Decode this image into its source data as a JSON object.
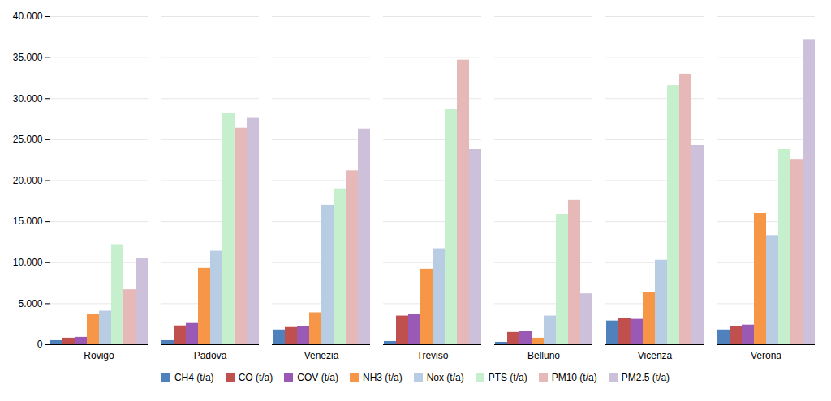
{
  "chart_data": {
    "type": "bar",
    "categories": [
      "Rovigo",
      "Padova",
      "Venezia",
      "Treviso",
      "Belluno",
      "Vicenza",
      "Verona"
    ],
    "series": [
      {
        "name": "CH4 (t/a)",
        "color": "#4F81BD",
        "values": [
          500,
          500,
          1800,
          400,
          300,
          2900,
          1800
        ]
      },
      {
        "name": "CO (t/a)",
        "color": "#C0504D",
        "values": [
          800,
          2300,
          2100,
          3500,
          1500,
          3200,
          2200
        ]
      },
      {
        "name": "COV (t/a)",
        "color": "#9B59B6",
        "values": [
          900,
          2600,
          2200,
          3700,
          1600,
          3100,
          2400
        ]
      },
      {
        "name": "NH3 (t/a)",
        "color": "#F79646",
        "values": [
          3700,
          9300,
          3900,
          9200,
          800,
          6400,
          16000
        ]
      },
      {
        "name": "Nox (t/a)",
        "color": "#B8CCE4",
        "values": [
          4100,
          11400,
          17000,
          11700,
          3500,
          10300,
          13300
        ]
      },
      {
        "name": "PTS (t/a)",
        "color": "#C6EFCE",
        "values": [
          12200,
          28200,
          19000,
          28700,
          15900,
          31600,
          23800
        ]
      },
      {
        "name": "PM10 (t/a)",
        "color": "#E6B9B8",
        "values": [
          6700,
          26400,
          21200,
          34700,
          17600,
          33000,
          22600
        ]
      },
      {
        "name": "PM2.5 (t/a)",
        "color": "#CCC0DA",
        "values": [
          10500,
          27600,
          26300,
          23800,
          6200,
          24300,
          37200
        ]
      }
    ],
    "ylim": [
      0,
      40000
    ],
    "yticks": [
      0,
      {
        "value": 5000,
        "label": "5.000"
      },
      {
        "value": 10000,
        "label": "10.000"
      },
      {
        "value": 15000,
        "label": "15.000"
      },
      {
        "value": 20000,
        "label": "20.000"
      },
      {
        "value": 25000,
        "label": "25.000"
      },
      {
        "value": 30000,
        "label": "30.000"
      },
      {
        "value": 35000,
        "label": "35.000"
      },
      {
        "value": 40000,
        "label": "40.000"
      }
    ],
    "grid": true,
    "legend": "bottom"
  }
}
